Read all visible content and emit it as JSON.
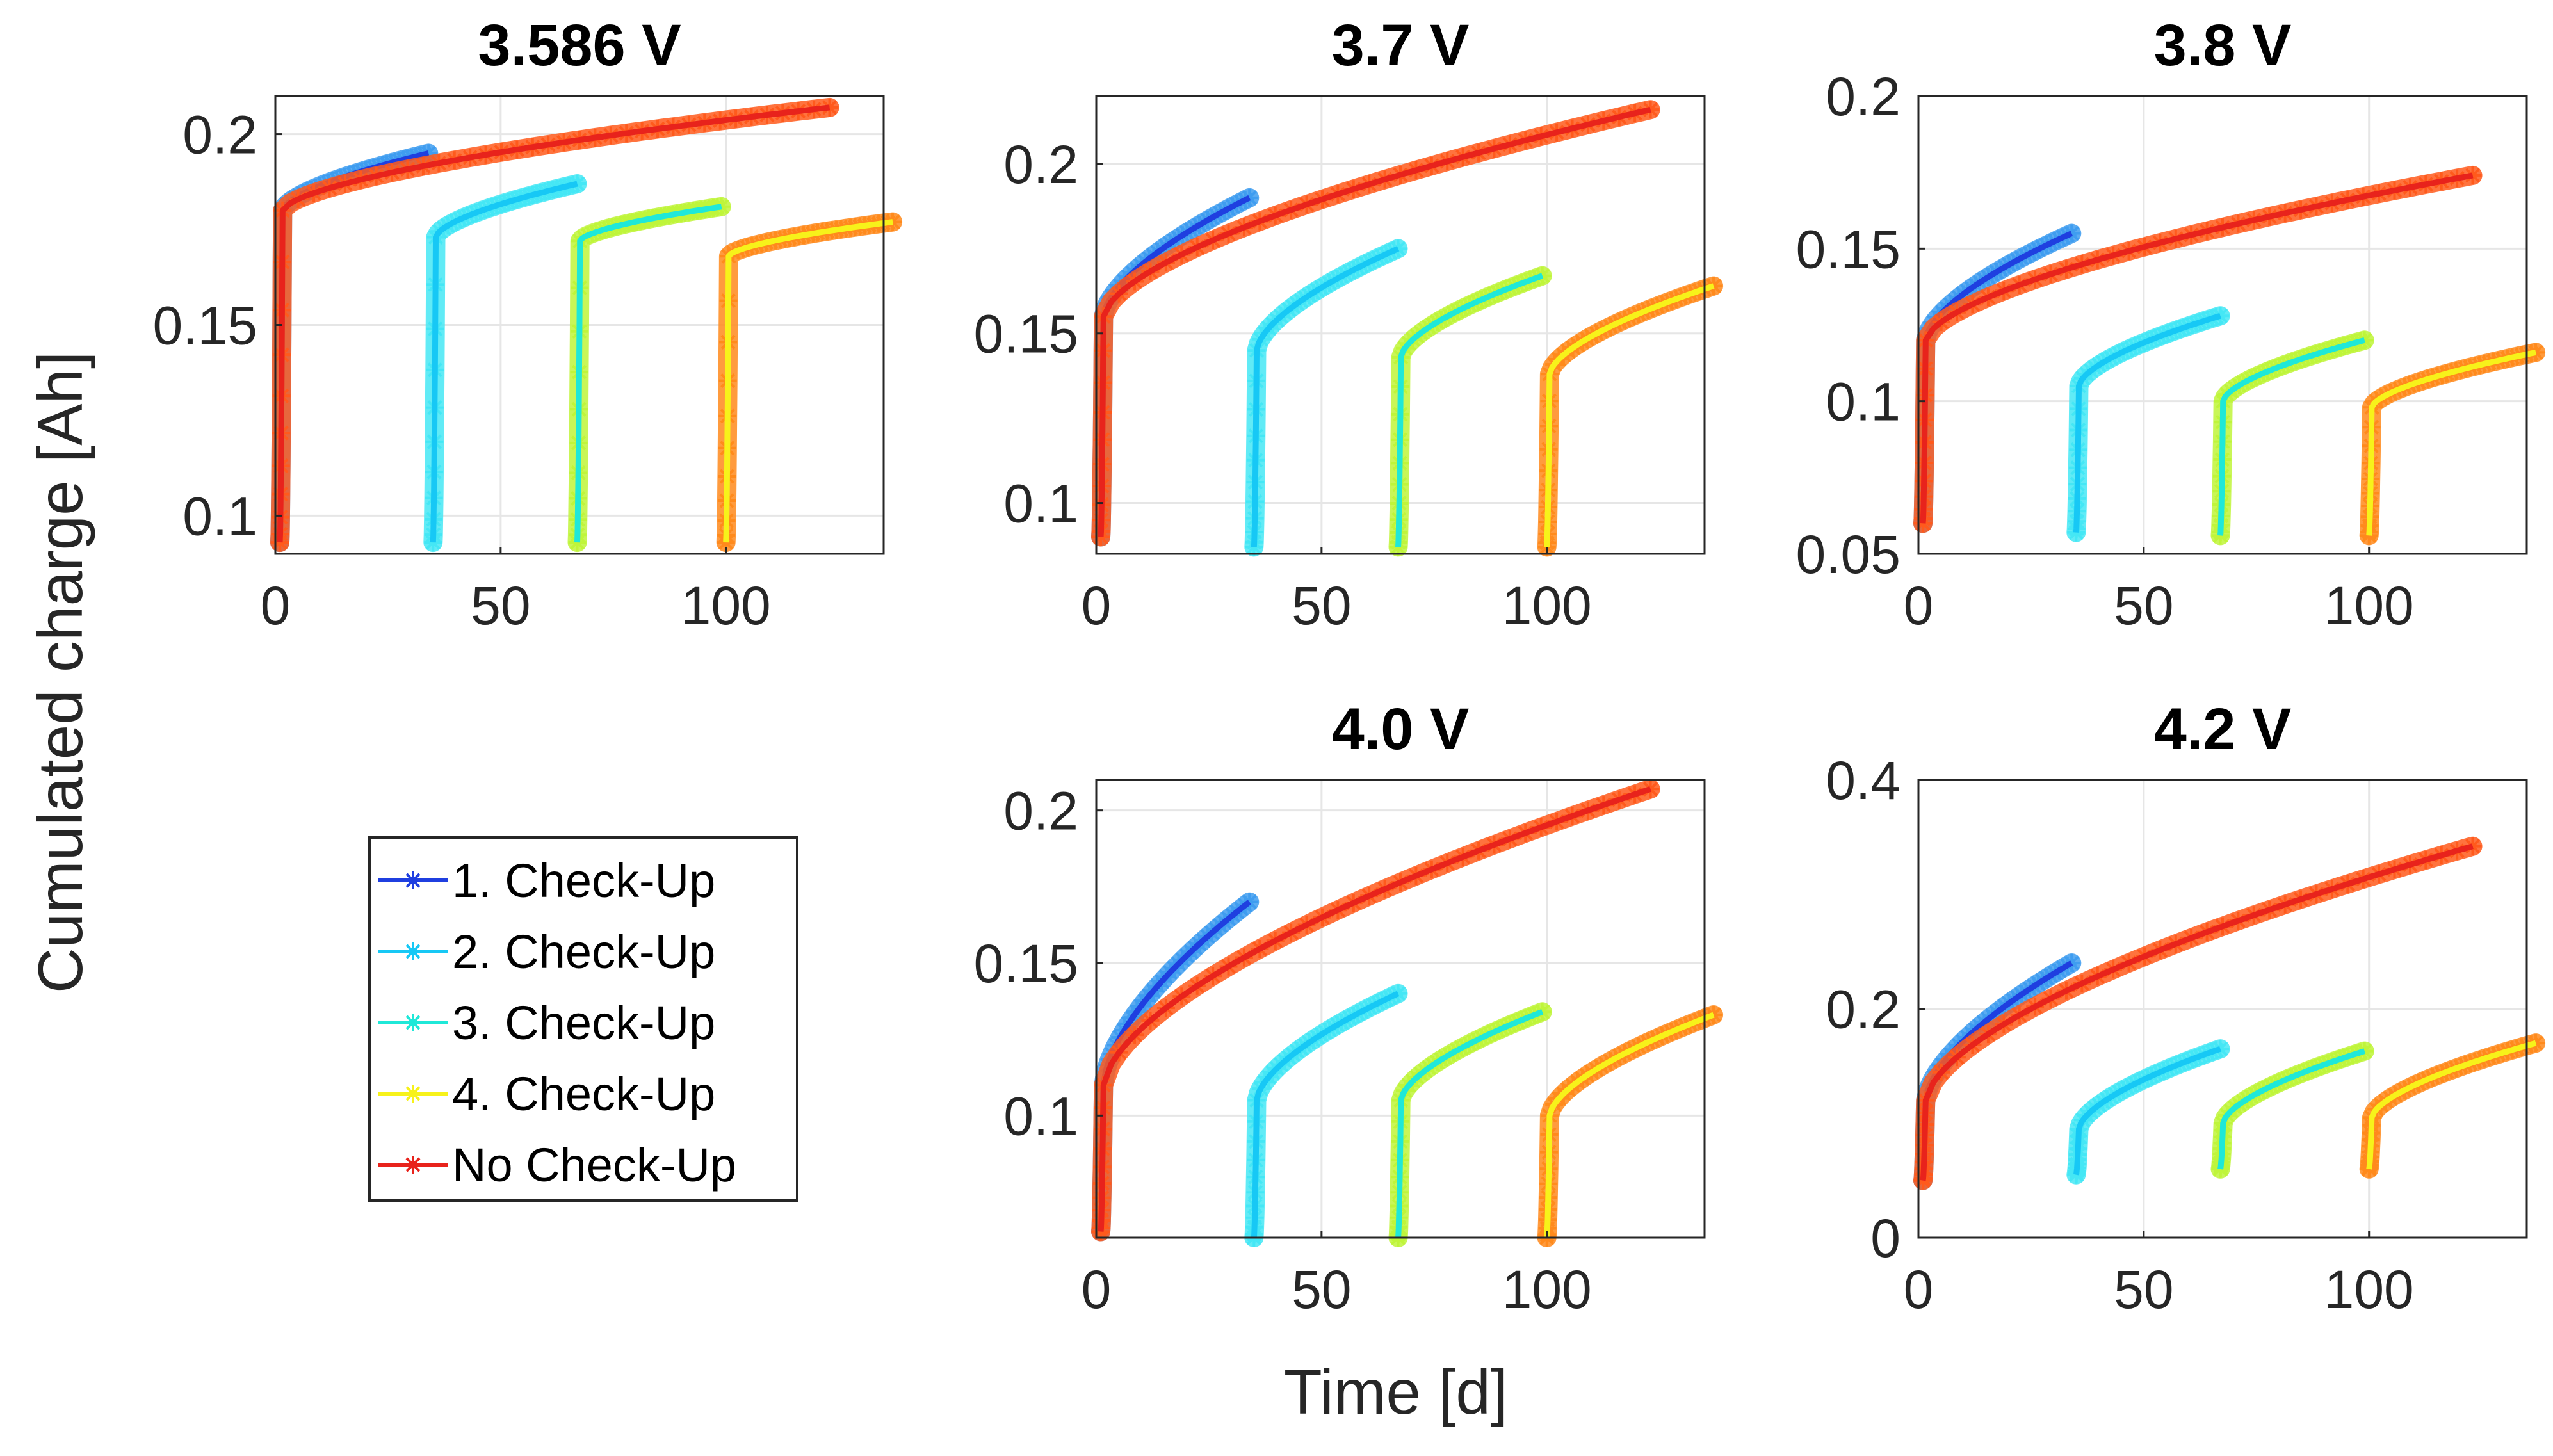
{
  "chart_data": {
    "type": "line",
    "ylabel": "Cumulated charge [Ah]",
    "xlabel": "Time [d]",
    "xlim": [
      0,
      135
    ],
    "xticks": [
      0,
      50,
      100
    ],
    "legend": {
      "placement": "bottom-left",
      "entries": [
        {
          "label": "1. Check-Up",
          "color": "#1f3fe0",
          "glow": "#3f9df0"
        },
        {
          "label": "2. Check-Up",
          "color": "#17c8f5",
          "glow": "#45e7f5"
        },
        {
          "label": "3. Check-Up",
          "color": "#1fe8d8",
          "glow": "#bff53a"
        },
        {
          "label": "4. Check-Up",
          "color": "#f7f21a",
          "glow": "#ff8a1c"
        },
        {
          "label": "No Check-Up",
          "color": "#e8231c",
          "glow": "#ff5a1c"
        }
      ]
    },
    "panels": [
      {
        "title": "3.586 V",
        "ylim": [
          0.09,
          0.21
        ],
        "yticks": [
          0.1,
          0.15,
          0.2
        ],
        "ytick_labels": [
          "0.1",
          "0.15",
          "0.2"
        ],
        "series": [
          {
            "name": "1. Check-Up",
            "t_start": 1,
            "t_end": 34,
            "q_start": 0.093,
            "q_knee": 0.18,
            "q_end": 0.195
          },
          {
            "name": "2. Check-Up",
            "t_start": 35,
            "t_end": 67,
            "q_start": 0.093,
            "q_knee": 0.173,
            "q_end": 0.187
          },
          {
            "name": "3. Check-Up",
            "t_start": 67,
            "t_end": 99,
            "q_start": 0.093,
            "q_knee": 0.172,
            "q_end": 0.181
          },
          {
            "name": "4. Check-Up",
            "t_start": 100,
            "t_end": 137,
            "q_start": 0.093,
            "q_knee": 0.168,
            "q_end": 0.177
          },
          {
            "name": "No Check-Up",
            "t_start": 1,
            "t_end": 123,
            "q_start": 0.093,
            "q_knee": 0.18,
            "q_end": 0.207
          }
        ]
      },
      {
        "title": "3.7 V",
        "ylim": [
          0.085,
          0.22
        ],
        "yticks": [
          0.1,
          0.15,
          0.2
        ],
        "ytick_labels": [
          "0.1",
          "0.15",
          "0.2"
        ],
        "series": [
          {
            "name": "1. Check-Up",
            "t_start": 1,
            "t_end": 34,
            "q_start": 0.09,
            "q_knee": 0.155,
            "q_end": 0.19
          },
          {
            "name": "2. Check-Up",
            "t_start": 35,
            "t_end": 67,
            "q_start": 0.087,
            "q_knee": 0.145,
            "q_end": 0.175
          },
          {
            "name": "3. Check-Up",
            "t_start": 67,
            "t_end": 99,
            "q_start": 0.087,
            "q_knee": 0.143,
            "q_end": 0.167
          },
          {
            "name": "4. Check-Up",
            "t_start": 100,
            "t_end": 137,
            "q_start": 0.087,
            "q_knee": 0.138,
            "q_end": 0.164
          },
          {
            "name": "No Check-Up",
            "t_start": 1,
            "t_end": 123,
            "q_start": 0.09,
            "q_knee": 0.155,
            "q_end": 0.216
          }
        ]
      },
      {
        "title": "3.8 V",
        "ylim": [
          0.05,
          0.2
        ],
        "yticks": [
          0.05,
          0.1,
          0.15,
          0.2
        ],
        "ytick_labels": [
          "0.05",
          "0.1",
          "0.15",
          "0.2"
        ],
        "series": [
          {
            "name": "1. Check-Up",
            "t_start": 1,
            "t_end": 34,
            "q_start": 0.06,
            "q_knee": 0.12,
            "q_end": 0.155
          },
          {
            "name": "2. Check-Up",
            "t_start": 35,
            "t_end": 67,
            "q_start": 0.057,
            "q_knee": 0.105,
            "q_end": 0.128
          },
          {
            "name": "3. Check-Up",
            "t_start": 67,
            "t_end": 99,
            "q_start": 0.056,
            "q_knee": 0.1,
            "q_end": 0.12
          },
          {
            "name": "4. Check-Up",
            "t_start": 100,
            "t_end": 137,
            "q_start": 0.056,
            "q_knee": 0.098,
            "q_end": 0.116
          },
          {
            "name": "No Check-Up",
            "t_start": 1,
            "t_end": 123,
            "q_start": 0.06,
            "q_knee": 0.12,
            "q_end": 0.174
          }
        ]
      },
      {
        "title": "4.0 V",
        "ylim": [
          0.06,
          0.21
        ],
        "yticks": [
          0.1,
          0.15,
          0.2
        ],
        "ytick_labels": [
          "0.1",
          "0.15",
          "0.2"
        ],
        "series": [
          {
            "name": "1. Check-Up",
            "t_start": 1,
            "t_end": 34,
            "q_start": 0.062,
            "q_knee": 0.11,
            "q_end": 0.17
          },
          {
            "name": "2. Check-Up",
            "t_start": 35,
            "t_end": 67,
            "q_start": 0.06,
            "q_knee": 0.105,
            "q_end": 0.14
          },
          {
            "name": "3. Check-Up",
            "t_start": 67,
            "t_end": 99,
            "q_start": 0.06,
            "q_knee": 0.105,
            "q_end": 0.134
          },
          {
            "name": "4. Check-Up",
            "t_start": 100,
            "t_end": 137,
            "q_start": 0.06,
            "q_knee": 0.1,
            "q_end": 0.133
          },
          {
            "name": "No Check-Up",
            "t_start": 1,
            "t_end": 123,
            "q_start": 0.062,
            "q_knee": 0.11,
            "q_end": 0.207
          }
        ]
      },
      {
        "title": "4.2 V",
        "ylim": [
          0,
          0.4
        ],
        "yticks": [
          0,
          0.2,
          0.4
        ],
        "ytick_labels": [
          "0",
          "0.2",
          "0.4"
        ],
        "series": [
          {
            "name": "1. Check-Up",
            "t_start": 1,
            "t_end": 34,
            "q_start": 0.05,
            "q_knee": 0.12,
            "q_end": 0.24
          },
          {
            "name": "2. Check-Up",
            "t_start": 35,
            "t_end": 67,
            "q_start": 0.055,
            "q_knee": 0.095,
            "q_end": 0.165
          },
          {
            "name": "3. Check-Up",
            "t_start": 67,
            "t_end": 99,
            "q_start": 0.06,
            "q_knee": 0.1,
            "q_end": 0.163
          },
          {
            "name": "4. Check-Up",
            "t_start": 100,
            "t_end": 137,
            "q_start": 0.06,
            "q_knee": 0.105,
            "q_end": 0.17
          },
          {
            "name": "No Check-Up",
            "t_start": 1,
            "t_end": 123,
            "q_start": 0.05,
            "q_knee": 0.12,
            "q_end": 0.342
          }
        ]
      }
    ]
  }
}
